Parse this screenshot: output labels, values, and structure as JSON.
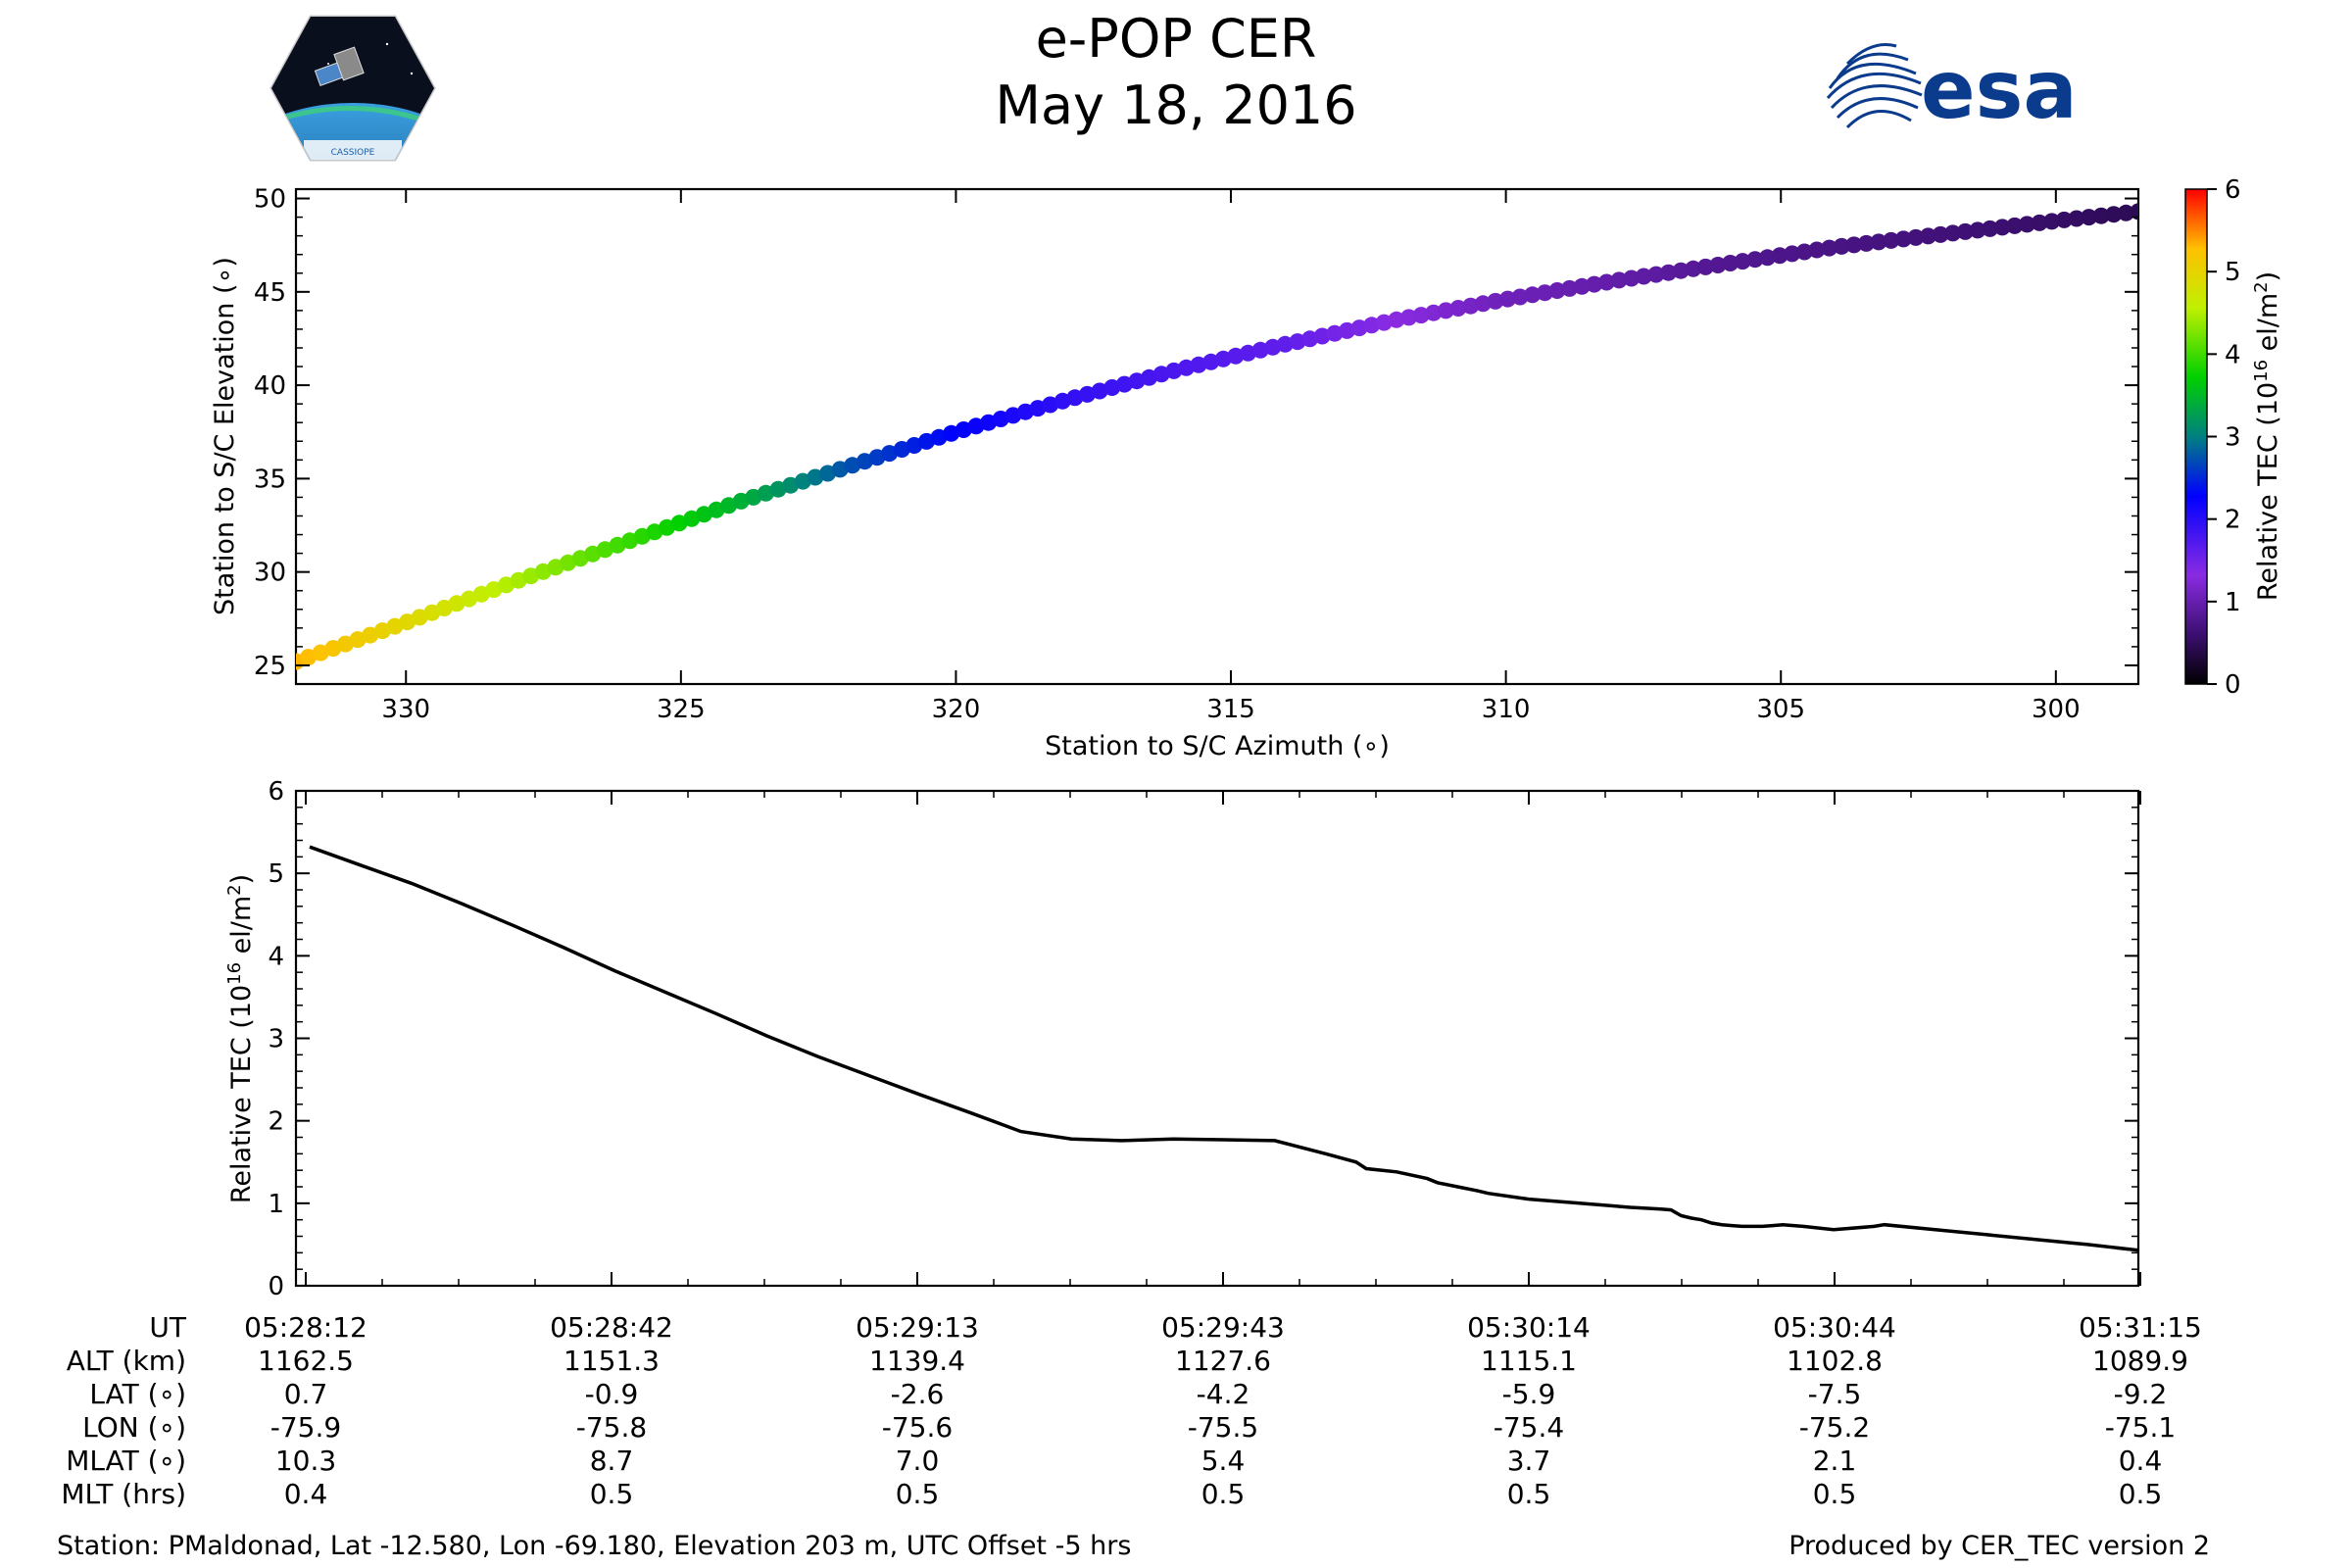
{
  "header": {
    "title": "e-POP CER",
    "date": "May 18, 2016",
    "left_logo_text": "CASSIOPE",
    "right_logo_text": "esa"
  },
  "chart_data": [
    {
      "type": "scatter",
      "title": "",
      "xlabel": "Station to S/C Azimuth (∘)",
      "ylabel": "Station to S/C Elevation (∘)",
      "xlim": [
        332,
        298.5
      ],
      "ylim": [
        24,
        50.5
      ],
      "xticks": [
        330,
        325,
        320,
        315,
        310,
        305,
        300
      ],
      "yticks": [
        25,
        30,
        35,
        40,
        45,
        50
      ],
      "colorbar": {
        "label": "Relative TEC (10^16 el/m^2)",
        "label_main": "Relative TEC (10",
        "label_exp": "16",
        "label_unit": " el/m",
        "label_sq": "2",
        "label_close": ")",
        "range": [
          0,
          6
        ],
        "ticks": [
          0,
          1,
          2,
          3,
          4,
          5,
          6
        ]
      },
      "track_keypoints": {
        "azimuth": [
          332,
          330,
          328,
          326,
          324,
          322,
          320,
          318,
          316,
          314,
          312,
          310,
          308,
          306,
          304,
          302,
          300,
          298.5
        ],
        "elevation": [
          25.2,
          27.3,
          29.5,
          31.6,
          33.7,
          35.6,
          37.5,
          39.2,
          40.8,
          42.2,
          43.5,
          44.6,
          45.6,
          46.5,
          47.4,
          48.1,
          48.8,
          49.3
        ],
        "tec": [
          5.35,
          4.95,
          4.45,
          3.95,
          3.45,
          2.75,
          2.3,
          1.95,
          1.75,
          1.6,
          1.3,
          1.05,
          0.95,
          0.8,
          0.72,
          0.65,
          0.55,
          0.45
        ]
      }
    },
    {
      "type": "line",
      "title": "",
      "xlabel": "",
      "ylabel": "Relative TEC (10^16 el/m^2)",
      "ylabel_main": "Relative TEC (10",
      "ylabel_exp": "16",
      "ylabel_unit": " el/m",
      "ylabel_sq": "2",
      "ylabel_close": ")",
      "xlim": [
        0,
        180
      ],
      "ylim": [
        0,
        6
      ],
      "yticks": [
        0,
        1,
        2,
        3,
        4,
        5,
        6
      ],
      "series": [
        {
          "name": "Relative TEC",
          "x": [
            0,
            5,
            10,
            15,
            20,
            25,
            30,
            35,
            40,
            45,
            50,
            55,
            60,
            65,
            70,
            75,
            80,
            85,
            90,
            95,
            100,
            103,
            104,
            107,
            110,
            111,
            113,
            115,
            116,
            120,
            125,
            130,
            133,
            134,
            135,
            136,
            137,
            138,
            139,
            140,
            141,
            142,
            143,
            144,
            145,
            147,
            150,
            154,
            155,
            160,
            165,
            170,
            175,
            180
          ],
          "y": [
            5.32,
            5.1,
            4.88,
            4.63,
            4.37,
            4.1,
            3.82,
            3.56,
            3.3,
            3.03,
            2.78,
            2.55,
            2.32,
            2.1,
            1.87,
            1.78,
            1.76,
            1.78,
            1.77,
            1.76,
            1.6,
            1.5,
            1.42,
            1.38,
            1.3,
            1.25,
            1.2,
            1.15,
            1.12,
            1.05,
            1.0,
            0.95,
            0.93,
            0.92,
            0.85,
            0.82,
            0.8,
            0.76,
            0.74,
            0.73,
            0.72,
            0.72,
            0.72,
            0.73,
            0.74,
            0.72,
            0.68,
            0.72,
            0.74,
            0.68,
            0.62,
            0.56,
            0.5,
            0.43
          ]
        }
      ]
    }
  ],
  "table": {
    "row_labels": [
      "UT",
      "ALT (km)",
      "LAT (∘)",
      "LON (∘)",
      "MLAT (∘)",
      "MLT (hrs)"
    ],
    "columns": [
      {
        "ut": "05:28:12",
        "alt": "1162.5",
        "lat": "0.7",
        "lon": "-75.9",
        "mlat": "10.3",
        "mlt": "0.4"
      },
      {
        "ut": "05:28:42",
        "alt": "1151.3",
        "lat": "-0.9",
        "lon": "-75.8",
        "mlat": "8.7",
        "mlt": "0.5"
      },
      {
        "ut": "05:29:13",
        "alt": "1139.4",
        "lat": "-2.6",
        "lon": "-75.6",
        "mlat": "7.0",
        "mlt": "0.5"
      },
      {
        "ut": "05:29:43",
        "alt": "1127.6",
        "lat": "-4.2",
        "lon": "-75.5",
        "mlat": "5.4",
        "mlt": "0.5"
      },
      {
        "ut": "05:30:14",
        "alt": "1115.1",
        "lat": "-5.9",
        "lon": "-75.4",
        "mlat": "3.7",
        "mlt": "0.5"
      },
      {
        "ut": "05:30:44",
        "alt": "1102.8",
        "lat": "-7.5",
        "lon": "-75.2",
        "mlat": "2.1",
        "mlt": "0.5"
      },
      {
        "ut": "05:31:15",
        "alt": "1089.9",
        "lat": "-9.2",
        "lon": "-75.1",
        "mlat": "0.4",
        "mlt": "0.5"
      }
    ]
  },
  "footer": {
    "station": "Station: PMaldonad, Lat -12.580, Lon -69.180, Elevation 203 m, UTC Offset -5 hrs",
    "produced": "Produced by CER_TEC version 2"
  },
  "colors": {
    "esa_blue": "#0b3b8c",
    "line": "#000000"
  }
}
